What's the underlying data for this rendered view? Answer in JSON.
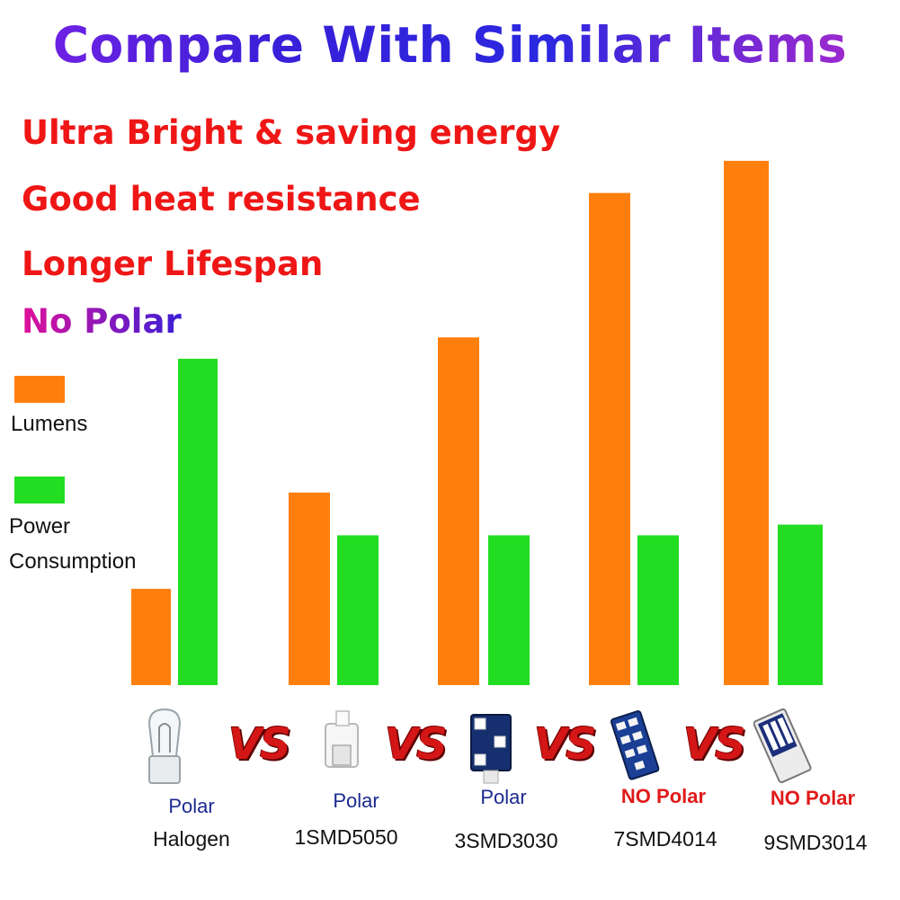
{
  "title": "Compare With Similar Items",
  "features": [
    "Ultra Bright & saving energy",
    "Good heat resistance",
    "Longer Lifespan",
    "No Polar"
  ],
  "legend": {
    "lumens_label": "Lumens",
    "power_label_line1": "Power",
    "power_label_line2": "Consumption",
    "lumens_color": "#ff7f0e",
    "power_color": "#22dd22"
  },
  "vs_label": "VS",
  "chart_data": {
    "type": "bar",
    "categories": [
      "Halogen",
      "1SMD5050",
      "3SMD3030",
      "7SMD4014",
      "9SMD3014"
    ],
    "polarity": [
      "Polar",
      "Polar",
      "Polar",
      "NO Polar",
      "NO Polar"
    ],
    "series": [
      {
        "name": "Lumens",
        "color": "#ff7f0e",
        "values": [
          18,
          36,
          65,
          92,
          98
        ]
      },
      {
        "name": "Power Consumption",
        "color": "#22dd22",
        "values": [
          61,
          28,
          28,
          28,
          30
        ]
      }
    ],
    "ylim": [
      0,
      100
    ],
    "grid": false,
    "legend_position": "left",
    "title": "",
    "xlabel": "",
    "ylabel": ""
  }
}
